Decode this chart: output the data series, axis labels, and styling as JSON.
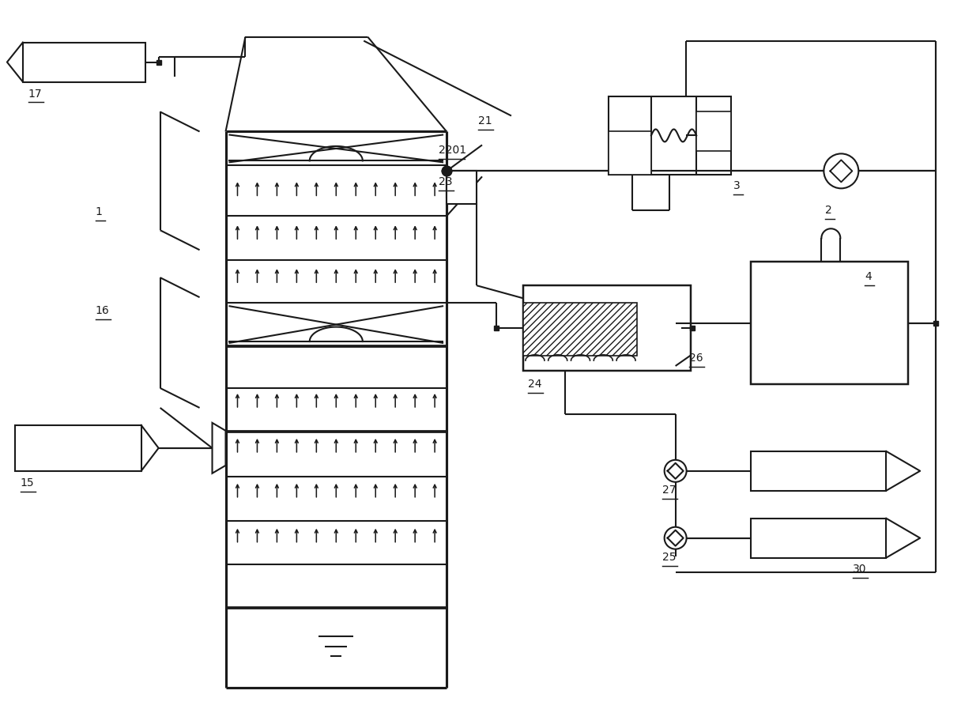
{
  "bg": "#ffffff",
  "lc": "#1a1a1a",
  "lw": 1.5,
  "fw": 12.4,
  "fh": 9.21
}
